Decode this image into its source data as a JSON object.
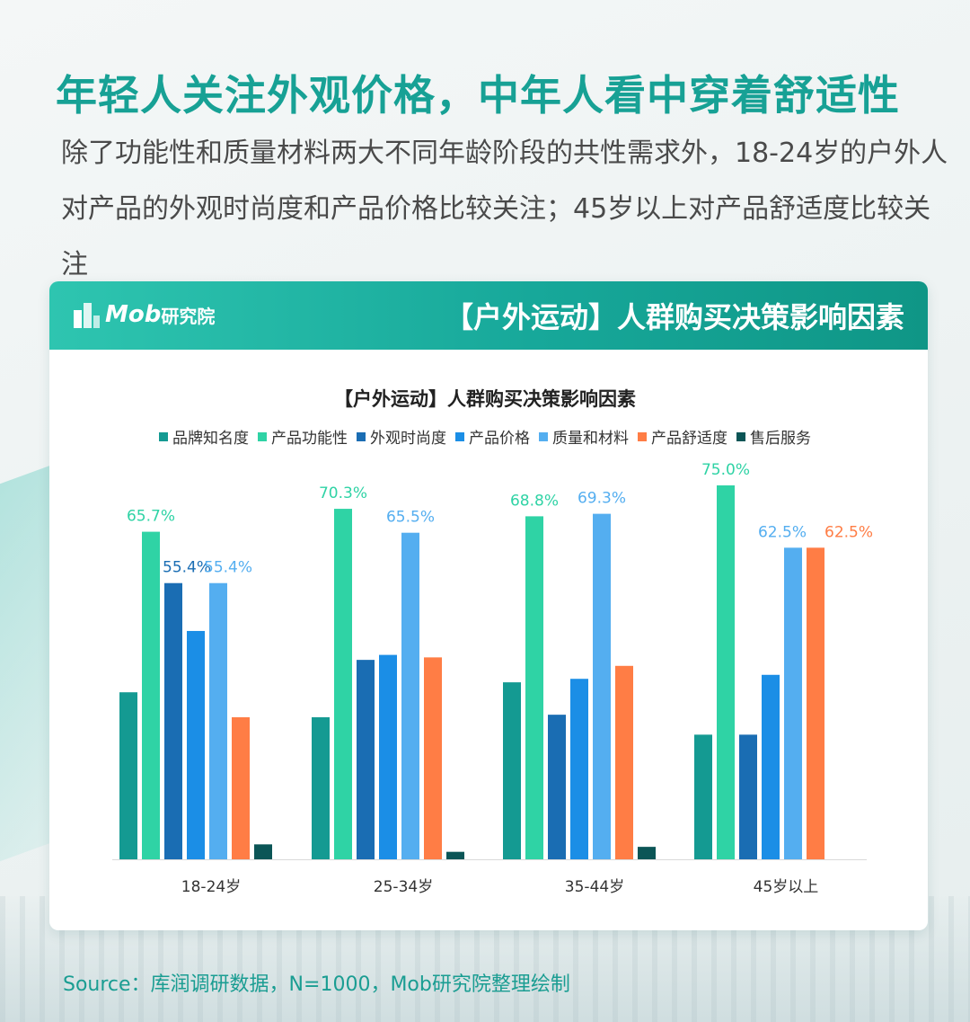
{
  "headline": "年轻人关注外观价格，中年人看中穿着舒适性",
  "intro": "除了功能性和质量材料两大不同年龄阶段的共性需求外，18-24岁的户外人对产品的外观时尚度和产品价格比较关注；45岁以上对产品舒适度比较关注",
  "card": {
    "logo_text": "Mob",
    "logo_cn": "研究院",
    "header_title": "【户外运动】人群购买决策影响因素"
  },
  "source": "Source：库润调研数据，N=1000，Mob研究院整理绘制",
  "chart_data": {
    "type": "bar",
    "title": "【户外运动】人群购买决策影响因素",
    "categories": [
      "18-24岁",
      "25-34岁",
      "35-44岁",
      "45岁以上"
    ],
    "ylim": [
      0,
      80
    ],
    "grid": false,
    "legend_position": "top",
    "series": [
      {
        "name": "品牌知名度",
        "color": "#149a92",
        "values": [
          33.5,
          28.5,
          35.5,
          25.0
        ],
        "labels": [
          null,
          null,
          null,
          null
        ]
      },
      {
        "name": "产品功能性",
        "color": "#2fd3a5",
        "values": [
          65.7,
          70.3,
          68.8,
          75.0
        ],
        "labels": [
          "65.7%",
          "70.3%",
          "68.8%",
          "75.0%"
        ]
      },
      {
        "name": "外观时尚度",
        "color": "#1a6db3",
        "values": [
          55.4,
          40.0,
          29.0,
          25.0
        ],
        "labels": [
          "55.4%",
          null,
          null,
          null
        ]
      },
      {
        "name": "产品价格",
        "color": "#1b8ee6",
        "values": [
          45.8,
          41.0,
          36.2,
          37.0
        ],
        "labels": [
          null,
          null,
          null,
          null
        ]
      },
      {
        "name": "质量和材料",
        "color": "#54aef0",
        "values": [
          55.4,
          65.5,
          69.3,
          62.5
        ],
        "labels": [
          "55.4%",
          "65.5%",
          "69.3%",
          "62.5%"
        ]
      },
      {
        "name": "产品舒适度",
        "color": "#ff7d45",
        "values": [
          28.5,
          40.5,
          38.8,
          62.5
        ],
        "labels": [
          null,
          null,
          null,
          "62.5%"
        ]
      },
      {
        "name": "售后服务",
        "color": "#0b5556",
        "values": [
          3.0,
          1.5,
          2.5,
          0.0
        ],
        "labels": [
          null,
          null,
          null,
          null
        ]
      }
    ]
  }
}
